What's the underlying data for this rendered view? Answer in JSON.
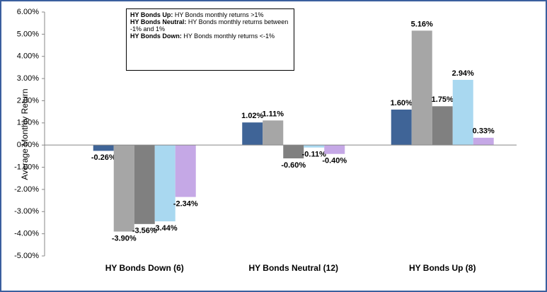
{
  "chart_data": {
    "type": "bar",
    "y_label": "Average Monthly Return",
    "categories": [
      "HY Bonds Down (6)",
      "HY Bonds Neutral (12)",
      "HY Bonds Up (8)"
    ],
    "series": [
      {
        "color": "#3f6497",
        "values": [
          -0.26,
          1.02,
          1.6
        ],
        "value_labels": [
          "-0.26%",
          "1.02%",
          "1.60%"
        ]
      },
      {
        "color": "#a6a6a6",
        "values": [
          -3.9,
          1.11,
          5.16
        ],
        "value_labels": [
          "-3.90%",
          "1.11%",
          "5.16%"
        ]
      },
      {
        "color": "#808080",
        "values": [
          -3.56,
          -0.6,
          1.75
        ],
        "value_labels": [
          "-3.56%",
          "-0.60%",
          "1.75%"
        ]
      },
      {
        "color": "#a9d8f0",
        "values": [
          -3.44,
          -0.11,
          2.94
        ],
        "value_labels": [
          "-3.44%",
          "-0.11%",
          "2.94%"
        ]
      },
      {
        "color": "#c5a8e6",
        "values": [
          -2.34,
          -0.4,
          0.33
        ],
        "value_labels": [
          "-2.34%",
          "-0.40%",
          "0.33%"
        ]
      }
    ],
    "ylim": [
      -5,
      6
    ],
    "yticks": [
      {
        "value": -5,
        "label": "-5.00%"
      },
      {
        "value": -4,
        "label": "-4.00%"
      },
      {
        "value": -3,
        "label": "-3.00%"
      },
      {
        "value": -2,
        "label": "-2.00%"
      },
      {
        "value": -1,
        "label": "-1.00%"
      },
      {
        "value": 0,
        "label": "0.00%"
      },
      {
        "value": 1,
        "label": "1.00%"
      },
      {
        "value": 2,
        "label": "2.00%"
      },
      {
        "value": 3,
        "label": "3.00%"
      },
      {
        "value": 4,
        "label": "4.00%"
      },
      {
        "value": 5,
        "label": "5.00%"
      },
      {
        "value": 6,
        "label": "6.00%"
      }
    ],
    "annotation": [
      {
        "bold": "HY Bonds Up:",
        "text": " HY Bonds monthly returns >1%"
      },
      {
        "bold": "HY Bonds Neutral:",
        "text": " HY Bonds monthly returns between -1% and 1%"
      },
      {
        "bold": "HY Bonds Down:",
        "text": " HY Bonds monthly returns <-1%"
      }
    ]
  }
}
